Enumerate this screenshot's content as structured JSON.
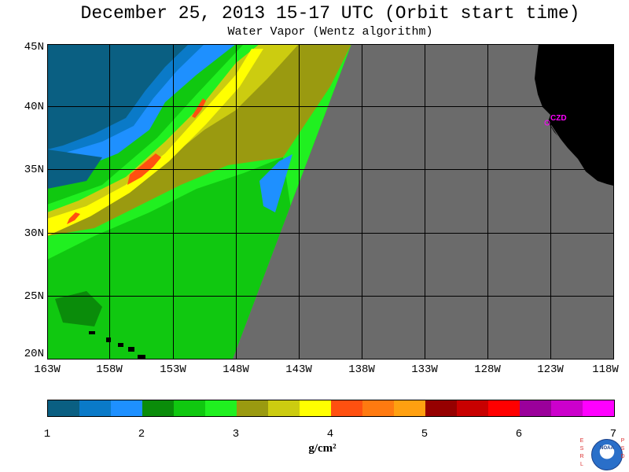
{
  "title": "December 25, 2013  15-17 UTC  (Orbit start time)",
  "subtitle": "Water Vapor (Wentz algorithm)",
  "map": {
    "lat_labels": [
      "45N",
      "40N",
      "35N",
      "30N",
      "25N",
      "20N"
    ],
    "lon_labels": [
      "163W",
      "158W",
      "153W",
      "148W",
      "143W",
      "138W",
      "133W",
      "128W",
      "123W",
      "118W"
    ],
    "station_label": "CZD",
    "no_data_color": "#6b6b6b",
    "land_color": "#000000",
    "grid_color": "#000000",
    "lat_range": [
      20,
      45
    ],
    "lon_range": [
      -163,
      -118
    ]
  },
  "colorbar": {
    "colors": [
      "#0a5f82",
      "#0a7ac8",
      "#1e90ff",
      "#0a8c0a",
      "#10c810",
      "#20f020",
      "#9a9a10",
      "#cccc10",
      "#ffff00",
      "#ff5010",
      "#ff7a10",
      "#ffa010",
      "#960000",
      "#c80000",
      "#ff0000",
      "#9b009b",
      "#cc00cc",
      "#ff00ff"
    ],
    "tick_labels": [
      "1",
      "2",
      "3",
      "4",
      "5",
      "6",
      "7"
    ],
    "units": "g/cm²"
  },
  "logo": {
    "left_letters": [
      "E",
      "S",
      "R",
      "L"
    ],
    "right_letters": [
      "P",
      "S",
      "D"
    ],
    "name": "NOAA"
  }
}
